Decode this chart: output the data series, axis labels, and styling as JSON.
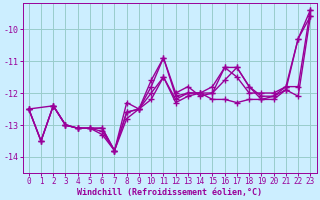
{
  "line1_x": [
    0,
    1,
    2,
    3,
    4,
    5,
    6,
    7,
    8,
    9,
    10,
    11,
    12,
    13,
    14,
    15,
    16,
    17,
    18,
    19,
    20,
    21,
    22,
    23
  ],
  "line1_y": [
    -12.5,
    -13.5,
    -12.4,
    -13.0,
    -13.1,
    -13.1,
    -13.1,
    -13.8,
    -12.6,
    -12.5,
    -12.2,
    -11.5,
    -12.3,
    -12.1,
    -12.0,
    -12.2,
    -12.2,
    -12.3,
    -12.2,
    -12.2,
    -12.1,
    -11.9,
    -12.1,
    -9.6
  ],
  "line2_x": [
    0,
    1,
    2,
    3,
    4,
    5,
    6,
    7,
    8,
    9,
    10,
    11,
    12,
    13,
    14,
    15,
    16,
    17,
    18,
    19,
    20,
    21,
    22,
    23
  ],
  "line2_y": [
    -12.5,
    -13.5,
    -12.4,
    -13.0,
    -13.1,
    -13.1,
    -13.2,
    -13.8,
    -12.3,
    -12.5,
    -11.6,
    -10.9,
    -12.0,
    -11.8,
    -12.1,
    -12.0,
    -11.2,
    -11.2,
    -11.8,
    -12.1,
    -12.1,
    -11.8,
    -10.3,
    -9.4
  ],
  "line3_x": [
    0,
    1,
    2,
    3,
    4,
    5,
    6,
    7,
    8,
    9,
    10,
    11,
    12,
    13,
    14,
    15,
    16,
    17,
    18,
    19,
    20,
    21,
    22,
    23
  ],
  "line3_y": [
    -12.5,
    -13.5,
    -12.4,
    -13.0,
    -13.1,
    -13.1,
    -13.1,
    -13.8,
    -12.8,
    -12.5,
    -12.0,
    -11.5,
    -12.2,
    -12.0,
    -12.0,
    -11.8,
    -11.2,
    -11.5,
    -12.0,
    -12.0,
    -12.0,
    -11.8,
    -11.8,
    -9.4
  ],
  "line4_x": [
    0,
    2,
    3,
    4,
    5,
    6,
    7,
    8,
    9,
    10,
    11,
    12,
    13,
    14,
    15,
    16,
    17,
    18,
    19,
    20,
    21,
    22,
    23
  ],
  "line4_y": [
    -12.5,
    -12.4,
    -13.0,
    -13.1,
    -13.1,
    -13.3,
    -13.8,
    -12.6,
    -12.5,
    -11.8,
    -10.9,
    -12.1,
    -12.0,
    -12.0,
    -12.0,
    -11.6,
    -11.2,
    -11.8,
    -12.2,
    -12.2,
    -11.9,
    -10.3,
    -9.6
  ],
  "line_color": "#990099",
  "bg_color": "#cceeff",
  "grid_color": "#99cccc",
  "xlabel": "Windchill (Refroidissement éolien,°C)",
  "ylim": [
    -14.5,
    -9.2
  ],
  "xlim": [
    -0.5,
    23.5
  ],
  "yticks": [
    -14,
    -13,
    -12,
    -11,
    -10
  ],
  "xticks": [
    0,
    1,
    2,
    3,
    4,
    5,
    6,
    7,
    8,
    9,
    10,
    11,
    12,
    13,
    14,
    15,
    16,
    17,
    18,
    19,
    20,
    21,
    22,
    23
  ],
  "marker": "+",
  "marker_size": 4,
  "line_width": 1.0,
  "tick_fontsize": 5.5,
  "xlabel_fontsize": 6.0
}
